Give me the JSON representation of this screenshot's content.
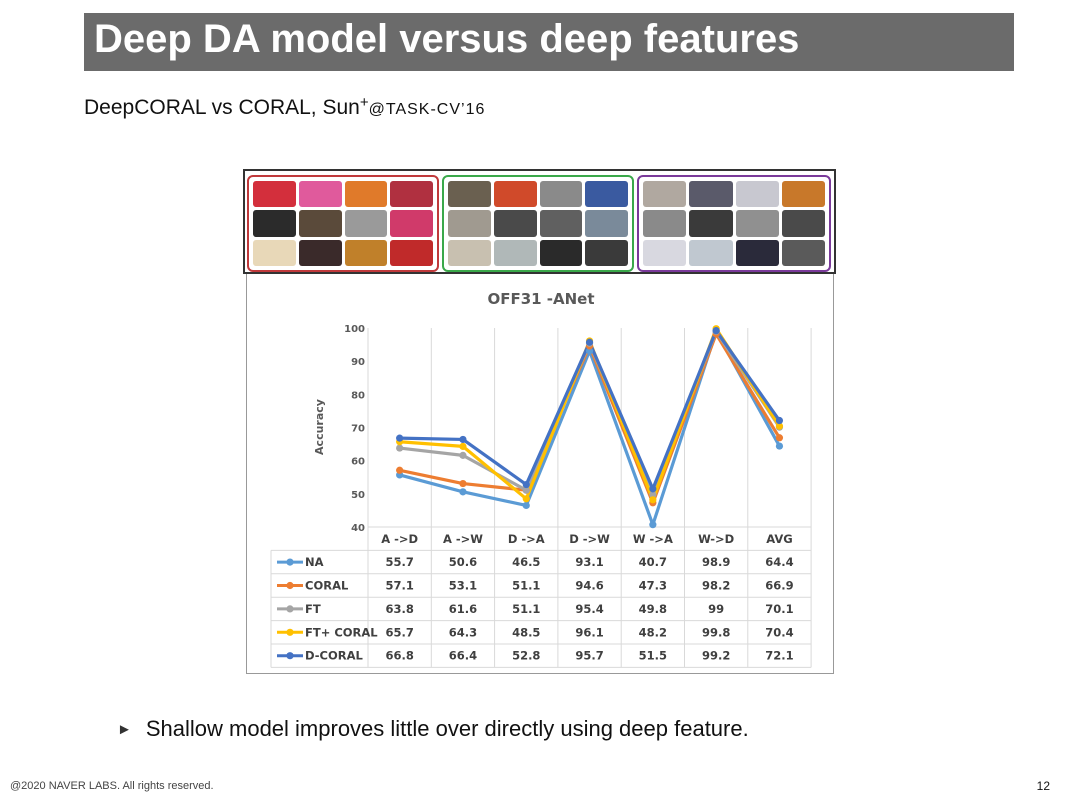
{
  "slide": {
    "title": "Deep DA model versus deep features",
    "subtitle_main": "DeepCORAL vs CORAL, Sun",
    "subtitle_sup": "+",
    "subtitle_venue": "@TASK-CV’16",
    "bullet": "Shallow model improves little over directly using deep feature.",
    "footer": "@2020 NAVER LABS. All rights reserved.",
    "page_number": "12"
  },
  "images": {
    "domains": [
      {
        "color": "#c0393b",
        "tiles": [
          "#d32f3c",
          "#e05a9c",
          "#e07a2a",
          "#b03040",
          "#2b2b2b",
          "#5a4a3a",
          "#9a9a9a",
          "#d03a6a",
          "#e8d8b8",
          "#3a2a2a",
          "#c0802a",
          "#c02a2a"
        ]
      },
      {
        "color": "#3aa84a",
        "tiles": [
          "#6a6050",
          "#d04a2a",
          "#8a8a8a",
          "#3a5aa0",
          "#a09a90",
          "#4a4a4a",
          "#606060",
          "#7a8a9a",
          "#c8c0b0",
          "#b0b8b8",
          "#2a2a2a",
          "#3a3a3a"
        ]
      },
      {
        "color": "#7a3a9a",
        "tiles": [
          "#b0a8a0",
          "#5a5a6a",
          "#c8c8d0",
          "#c8782a",
          "#8a8a8a",
          "#3a3a3a",
          "#909090",
          "#4a4a4a",
          "#d8d8e0",
          "#c0c8d0",
          "#2a2a3a",
          "#5a5a5a"
        ]
      }
    ]
  },
  "chart_data": {
    "type": "line",
    "title": "OFF31 -ANet",
    "ylabel": "Accuracy",
    "xlabel": "",
    "ylim": [
      40,
      100
    ],
    "yticks": [
      40,
      50,
      60,
      70,
      80,
      90,
      100
    ],
    "grid": "vertical",
    "categories": [
      "A ->D",
      "A ->W",
      "D ->A",
      "D ->W",
      "W ->A",
      "W->D",
      "AVG"
    ],
    "series": [
      {
        "name": "NA",
        "color": "#5b9bd5",
        "values": [
          55.7,
          50.6,
          46.5,
          93.1,
          40.7,
          98.9,
          64.4
        ],
        "labels": [
          "55.7",
          "50.6",
          "46.5",
          "93.1",
          "40.7",
          "98.9",
          "64.4"
        ]
      },
      {
        "name": "CORAL",
        "color": "#ed7d31",
        "values": [
          57.1,
          53.1,
          51.1,
          94.6,
          47.3,
          98.2,
          66.9
        ],
        "labels": [
          "57.1",
          "53.1",
          "51.1",
          "94.6",
          "47.3",
          "98.2",
          "66.9"
        ]
      },
      {
        "name": "FT",
        "color": "#a5a5a5",
        "values": [
          63.8,
          61.6,
          51.1,
          95.4,
          49.8,
          99,
          70.1
        ],
        "labels": [
          "63.8",
          "61.6",
          "51.1",
          "95.4",
          "49.8",
          "99",
          "70.1"
        ]
      },
      {
        "name": "FT+ CORAL",
        "color": "#ffc000",
        "values": [
          65.7,
          64.3,
          48.5,
          96.1,
          48.2,
          99.8,
          70.4
        ],
        "labels": [
          "65.7",
          "64.3",
          "48.5",
          "96.1",
          "48.2",
          "99.8",
          "70.4"
        ]
      },
      {
        "name": "D-CORAL",
        "color": "#4472c4",
        "values": [
          66.8,
          66.4,
          52.8,
          95.7,
          51.5,
          99.2,
          72.1
        ],
        "labels": [
          "66.8",
          "66.4",
          "52.8",
          "95.7",
          "51.5",
          "99.2",
          "72.1"
        ]
      }
    ]
  }
}
